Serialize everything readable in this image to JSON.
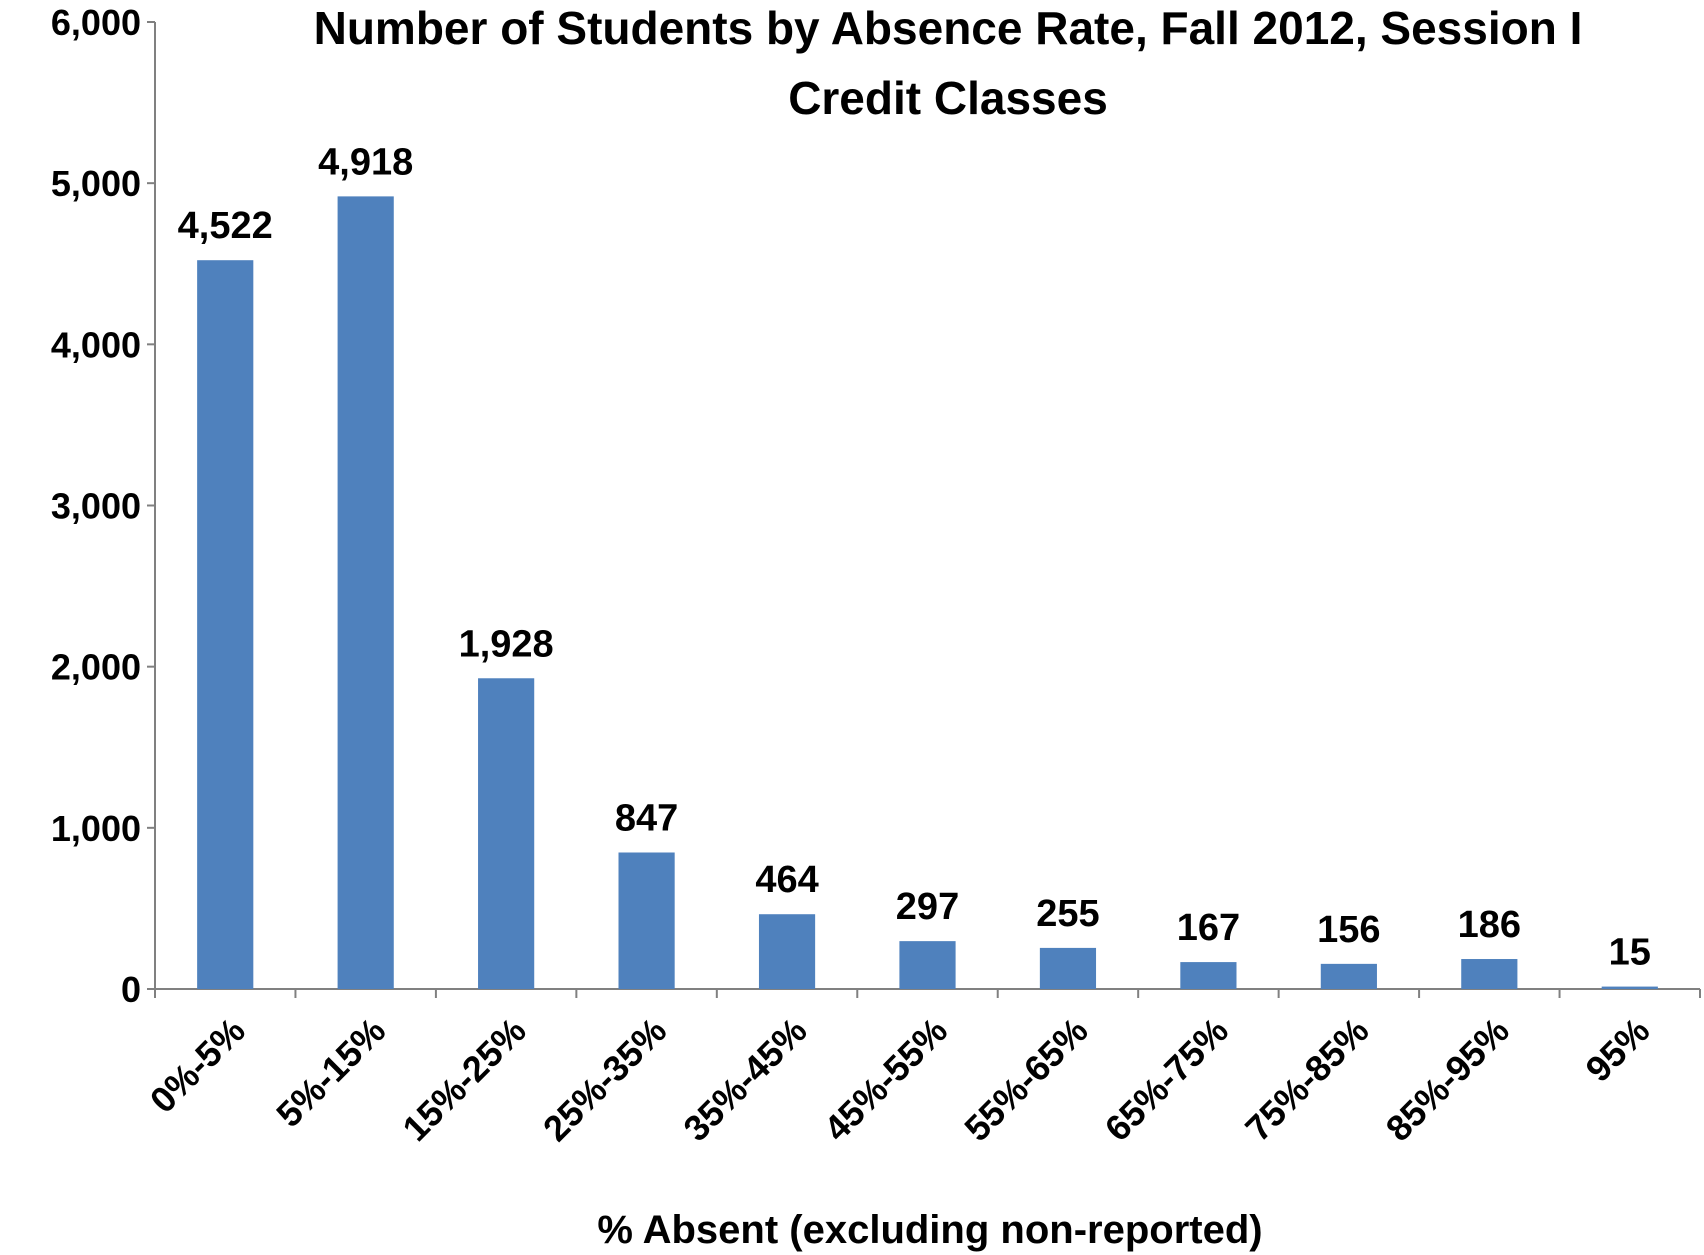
{
  "chart_data": {
    "type": "bar",
    "title_lines": [
      "Number of Students by Absence Rate, Fall 2012, Session I",
      "Credit Classes"
    ],
    "xlabel": "% Absent (excluding non-reported)",
    "ylabel": "",
    "categories": [
      "0%-5%",
      "5%-15%",
      "15%-25%",
      "25%-35%",
      "35%-45%",
      "45%-55%",
      "55%-65%",
      "65%-75%",
      "75%-85%",
      "85%-95%",
      "95%"
    ],
    "values": [
      4522,
      4918,
      1928,
      847,
      464,
      297,
      255,
      167,
      156,
      186,
      15
    ],
    "value_labels": [
      "4,522",
      "4,918",
      "1,928",
      "847",
      "464",
      "297",
      "255",
      "167",
      "156",
      "186",
      "15"
    ],
    "ylim": [
      0,
      6000
    ],
    "yticks": [
      0,
      1000,
      2000,
      3000,
      4000,
      5000,
      6000
    ],
    "ytick_labels": [
      "0",
      "1,000",
      "2,000",
      "3,000",
      "4,000",
      "5,000",
      "6,000"
    ],
    "bar_color": "#4F81BD",
    "axis_color": "#808080",
    "grid": false,
    "legend": "none"
  }
}
